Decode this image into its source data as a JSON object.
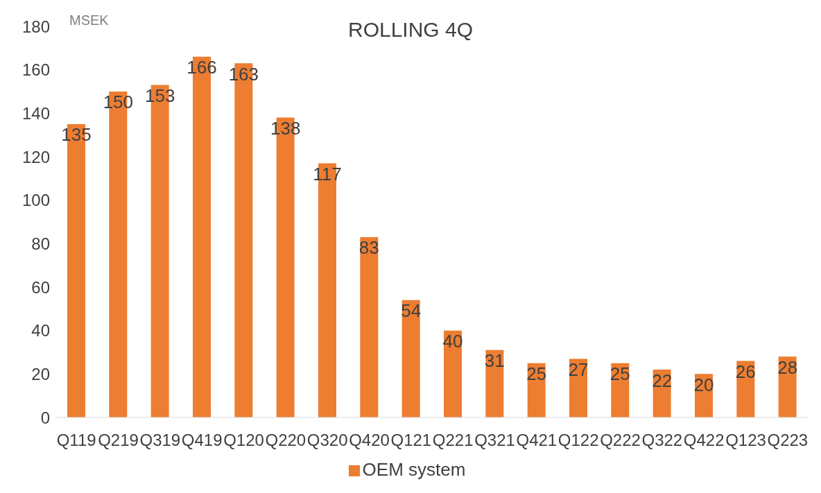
{
  "chart_data": {
    "type": "bar",
    "title": "ROLLING 4Q",
    "ylabel": "MSEK",
    "categories": [
      "Q119",
      "Q219",
      "Q319",
      "Q419",
      "Q120",
      "Q220",
      "Q320",
      "Q420",
      "Q121",
      "Q221",
      "Q321",
      "Q421",
      "Q122",
      "Q222",
      "Q322",
      "Q422",
      "Q123",
      "Q223"
    ],
    "series": [
      {
        "name": "OEM system",
        "color": "#ed7d31",
        "values": [
          135,
          150,
          153,
          166,
          163,
          138,
          117,
          83,
          54,
          40,
          31,
          25,
          27,
          25,
          22,
          20,
          26,
          28
        ]
      }
    ],
    "ylim": [
      0,
      180
    ],
    "yticks": [
      0,
      20,
      40,
      60,
      80,
      100,
      120,
      140,
      160,
      180
    ],
    "grid": false,
    "legend": "bottom",
    "data_labels": true
  }
}
